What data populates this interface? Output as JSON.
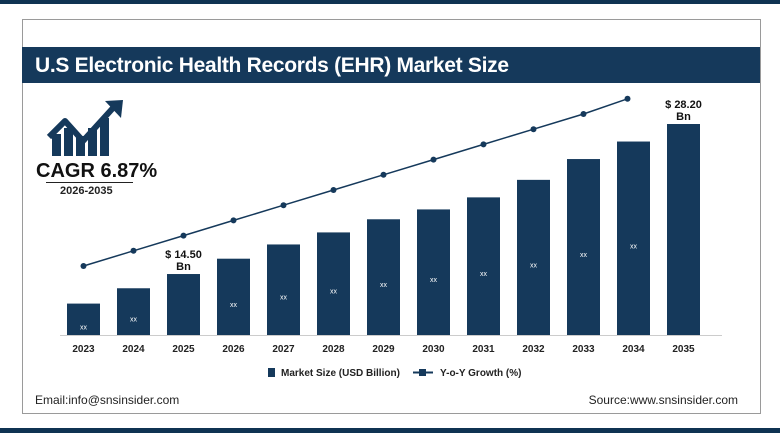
{
  "title": "U.S Electronic Health Records (EHR) Market Size",
  "cagr": {
    "label": "CAGR 6.87%",
    "period": "2026-2035"
  },
  "colors": {
    "bar": "#15395b",
    "line": "#15395b",
    "title_bg": "#15395b"
  },
  "icons": {
    "growth": "bar-chart-rising-arrow-icon"
  },
  "chart_data": {
    "type": "bar",
    "categories": [
      "2023",
      "2024",
      "2025",
      "2026",
      "2027",
      "2028",
      "2029",
      "2030",
      "2031",
      "2032",
      "2033",
      "2034",
      "2035"
    ],
    "series": [
      {
        "name": "Market Size (USD Billion)",
        "type": "bar",
        "values": [
          11.8,
          13.2,
          14.5,
          15.9,
          17.2,
          18.3,
          19.5,
          20.4,
          21.5,
          23.1,
          25.0,
          26.6,
          28.2
        ],
        "labels": [
          "xx",
          "xx",
          "",
          "xx",
          "xx",
          "xx",
          "xx",
          "xx",
          "xx",
          "xx",
          "xx",
          "xx",
          ""
        ]
      },
      {
        "name": "Y-o-Y Growth (%)",
        "type": "line",
        "trend": "steadily increasing",
        "years": [
          "2023",
          "2024",
          "2025",
          "2026",
          "2027",
          "2028",
          "2029",
          "2030",
          "2031",
          "2032",
          "2033",
          "2034"
        ]
      }
    ],
    "annotations": [
      {
        "category": "2025",
        "text": "$ 14.50",
        "unit": "Bn"
      },
      {
        "category": "2035",
        "text": "$ 28.20",
        "unit": "Bn"
      }
    ],
    "legend": "bottom-center",
    "grid": false,
    "y_axis_shown": false
  },
  "footer": {
    "email": "Email:info@snsinsider.com",
    "source": "Source:www.snsinsider.com"
  }
}
